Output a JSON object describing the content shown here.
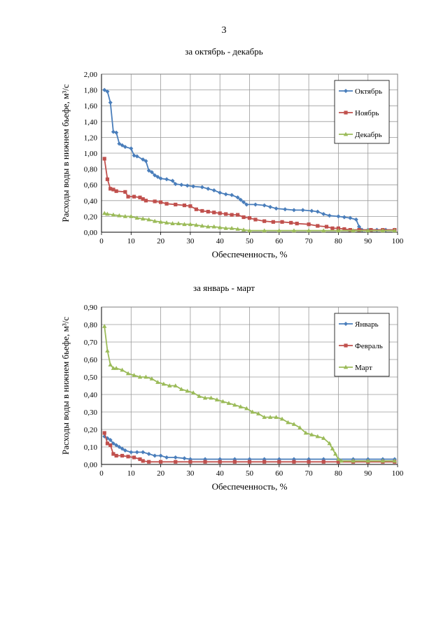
{
  "page": {
    "number": "3"
  },
  "chart_data": [
    {
      "type": "line",
      "title": "за октябрь - декабрь",
      "xlabel": "Обеспеченность, %",
      "ylabel": "Расходы воды в нижнем бьефе, м³/с",
      "xlim": [
        0,
        100
      ],
      "ylim": [
        0,
        2.0
      ],
      "x_ticks": [
        "0",
        "10",
        "20",
        "30",
        "40",
        "50",
        "60",
        "70",
        "80",
        "90",
        "100"
      ],
      "y_ticks": [
        "0,00",
        "0,20",
        "0,40",
        "0,60",
        "0,80",
        "1,00",
        "1,20",
        "1,40",
        "1,60",
        "1,80",
        "2,00"
      ],
      "grid": true,
      "legend_position": "top-right",
      "series": [
        {
          "name": "Октябрь",
          "color": "#4a7ebb",
          "marker": "diamond",
          "points": [
            [
              1,
              1.8
            ],
            [
              2,
              1.78
            ],
            [
              3,
              1.64
            ],
            [
              4,
              1.27
            ],
            [
              5,
              1.26
            ],
            [
              6,
              1.12
            ],
            [
              7,
              1.1
            ],
            [
              8,
              1.08
            ],
            [
              10,
              1.06
            ],
            [
              11,
              0.97
            ],
            [
              12,
              0.96
            ],
            [
              14,
              0.92
            ],
            [
              15,
              0.9
            ],
            [
              16,
              0.78
            ],
            [
              17,
              0.76
            ],
            [
              18,
              0.72
            ],
            [
              19,
              0.7
            ],
            [
              20,
              0.68
            ],
            [
              22,
              0.67
            ],
            [
              24,
              0.65
            ],
            [
              25,
              0.61
            ],
            [
              27,
              0.6
            ],
            [
              29,
              0.59
            ],
            [
              31,
              0.58
            ],
            [
              34,
              0.57
            ],
            [
              36,
              0.55
            ],
            [
              38,
              0.53
            ],
            [
              40,
              0.5
            ],
            [
              42,
              0.48
            ],
            [
              44,
              0.47
            ],
            [
              46,
              0.44
            ],
            [
              47,
              0.41
            ],
            [
              48,
              0.38
            ],
            [
              49,
              0.35
            ],
            [
              52,
              0.35
            ],
            [
              55,
              0.34
            ],
            [
              57,
              0.32
            ],
            [
              59,
              0.3
            ],
            [
              62,
              0.29
            ],
            [
              65,
              0.28
            ],
            [
              68,
              0.28
            ],
            [
              71,
              0.27
            ],
            [
              73,
              0.26
            ],
            [
              75,
              0.23
            ],
            [
              77,
              0.21
            ],
            [
              80,
              0.2
            ],
            [
              82,
              0.19
            ],
            [
              84,
              0.18
            ],
            [
              86,
              0.16
            ],
            [
              87,
              0.07
            ],
            [
              88,
              0.03
            ],
            [
              90,
              0.03
            ],
            [
              93,
              0.03
            ],
            [
              96,
              0.03
            ],
            [
              99,
              0.03
            ]
          ]
        },
        {
          "name": "Ноябрь",
          "color": "#c0504d",
          "marker": "square",
          "points": [
            [
              1,
              0.93
            ],
            [
              2,
              0.67
            ],
            [
              3,
              0.55
            ],
            [
              4,
              0.54
            ],
            [
              5,
              0.52
            ],
            [
              8,
              0.51
            ],
            [
              9,
              0.45
            ],
            [
              11,
              0.45
            ],
            [
              13,
              0.44
            ],
            [
              14,
              0.42
            ],
            [
              15,
              0.4
            ],
            [
              18,
              0.39
            ],
            [
              20,
              0.38
            ],
            [
              22,
              0.36
            ],
            [
              25,
              0.35
            ],
            [
              28,
              0.34
            ],
            [
              30,
              0.33
            ],
            [
              32,
              0.29
            ],
            [
              34,
              0.27
            ],
            [
              36,
              0.26
            ],
            [
              38,
              0.25
            ],
            [
              40,
              0.24
            ],
            [
              42,
              0.23
            ],
            [
              44,
              0.22
            ],
            [
              46,
              0.22
            ],
            [
              48,
              0.19
            ],
            [
              50,
              0.18
            ],
            [
              52,
              0.16
            ],
            [
              55,
              0.14
            ],
            [
              58,
              0.13
            ],
            [
              61,
              0.13
            ],
            [
              64,
              0.12
            ],
            [
              66,
              0.11
            ],
            [
              70,
              0.1
            ],
            [
              73,
              0.08
            ],
            [
              76,
              0.07
            ],
            [
              78,
              0.05
            ],
            [
              80,
              0.05
            ],
            [
              82,
              0.04
            ],
            [
              84,
              0.03
            ],
            [
              87,
              0.03
            ],
            [
              91,
              0.03
            ],
            [
              95,
              0.03
            ],
            [
              99,
              0.03
            ]
          ]
        },
        {
          "name": "Декабрь",
          "color": "#9bbb59",
          "marker": "triangle",
          "points": [
            [
              1,
              0.24
            ],
            [
              2,
              0.23
            ],
            [
              4,
              0.22
            ],
            [
              6,
              0.21
            ],
            [
              8,
              0.2
            ],
            [
              10,
              0.2
            ],
            [
              12,
              0.18
            ],
            [
              14,
              0.17
            ],
            [
              16,
              0.16
            ],
            [
              18,
              0.14
            ],
            [
              20,
              0.13
            ],
            [
              22,
              0.12
            ],
            [
              24,
              0.11
            ],
            [
              26,
              0.11
            ],
            [
              28,
              0.1
            ],
            [
              30,
              0.1
            ],
            [
              32,
              0.09
            ],
            [
              34,
              0.08
            ],
            [
              36,
              0.07
            ],
            [
              38,
              0.07
            ],
            [
              40,
              0.06
            ],
            [
              42,
              0.05
            ],
            [
              44,
              0.05
            ],
            [
              46,
              0.04
            ],
            [
              48,
              0.03
            ],
            [
              50,
              0.02
            ],
            [
              55,
              0.02
            ],
            [
              60,
              0.02
            ],
            [
              65,
              0.02
            ],
            [
              70,
              0.02
            ],
            [
              75,
              0.02
            ],
            [
              80,
              0.02
            ],
            [
              85,
              0.02
            ],
            [
              90,
              0.02
            ],
            [
              95,
              0.02
            ],
            [
              99,
              0.02
            ]
          ]
        }
      ]
    },
    {
      "type": "line",
      "title": "за январь - март",
      "xlabel": "Обеспеченность, %",
      "ylabel": "Расходы воды в нижнем бьефе, м³/с",
      "xlim": [
        0,
        100
      ],
      "ylim": [
        0,
        0.9
      ],
      "x_ticks": [
        "0",
        "10",
        "20",
        "30",
        "40",
        "50",
        "60",
        "70",
        "80",
        "90",
        "100"
      ],
      "y_ticks": [
        "0,00",
        "0,10",
        "0,20",
        "0,30",
        "0,40",
        "0,50",
        "0,60",
        "0,70",
        "0,80",
        "0,90"
      ],
      "grid": true,
      "legend_position": "top-right",
      "series": [
        {
          "name": "Январь",
          "color": "#4a7ebb",
          "marker": "diamond",
          "points": [
            [
              1,
              0.16
            ],
            [
              2,
              0.15
            ],
            [
              3,
              0.14
            ],
            [
              4,
              0.12
            ],
            [
              5,
              0.11
            ],
            [
              6,
              0.1
            ],
            [
              7,
              0.09
            ],
            [
              8,
              0.08
            ],
            [
              10,
              0.07
            ],
            [
              12,
              0.07
            ],
            [
              14,
              0.07
            ],
            [
              16,
              0.06
            ],
            [
              18,
              0.05
            ],
            [
              20,
              0.05
            ],
            [
              22,
              0.04
            ],
            [
              25,
              0.04
            ],
            [
              28,
              0.035
            ],
            [
              30,
              0.03
            ],
            [
              35,
              0.03
            ],
            [
              40,
              0.03
            ],
            [
              45,
              0.03
            ],
            [
              50,
              0.03
            ],
            [
              55,
              0.03
            ],
            [
              60,
              0.03
            ],
            [
              65,
              0.03
            ],
            [
              70,
              0.03
            ],
            [
              75,
              0.03
            ],
            [
              80,
              0.03
            ],
            [
              85,
              0.03
            ],
            [
              90,
              0.03
            ],
            [
              95,
              0.03
            ],
            [
              99,
              0.03
            ]
          ]
        },
        {
          "name": "Февраль",
          "color": "#c0504d",
          "marker": "square",
          "points": [
            [
              1,
              0.18
            ],
            [
              2,
              0.12
            ],
            [
              3,
              0.11
            ],
            [
              4,
              0.06
            ],
            [
              5,
              0.05
            ],
            [
              7,
              0.05
            ],
            [
              9,
              0.045
            ],
            [
              11,
              0.04
            ],
            [
              13,
              0.03
            ],
            [
              14,
              0.02
            ],
            [
              16,
              0.015
            ],
            [
              20,
              0.015
            ],
            [
              25,
              0.015
            ],
            [
              30,
              0.015
            ],
            [
              35,
              0.015
            ],
            [
              40,
              0.015
            ],
            [
              45,
              0.015
            ],
            [
              50,
              0.015
            ],
            [
              55,
              0.015
            ],
            [
              60,
              0.015
            ],
            [
              65,
              0.015
            ],
            [
              70,
              0.015
            ],
            [
              75,
              0.015
            ],
            [
              80,
              0.015
            ],
            [
              85,
              0.015
            ],
            [
              90,
              0.015
            ],
            [
              95,
              0.015
            ],
            [
              99,
              0.015
            ]
          ]
        },
        {
          "name": "Март",
          "color": "#9bbb59",
          "marker": "triangle",
          "points": [
            [
              1,
              0.79
            ],
            [
              2,
              0.65
            ],
            [
              3,
              0.57
            ],
            [
              4,
              0.55
            ],
            [
              5,
              0.55
            ],
            [
              7,
              0.54
            ],
            [
              9,
              0.52
            ],
            [
              11,
              0.51
            ],
            [
              13,
              0.5
            ],
            [
              15,
              0.5
            ],
            [
              17,
              0.49
            ],
            [
              19,
              0.47
            ],
            [
              21,
              0.46
            ],
            [
              23,
              0.45
            ],
            [
              25,
              0.45
            ],
            [
              27,
              0.43
            ],
            [
              29,
              0.42
            ],
            [
              31,
              0.41
            ],
            [
              33,
              0.39
            ],
            [
              35,
              0.38
            ],
            [
              37,
              0.38
            ],
            [
              39,
              0.37
            ],
            [
              41,
              0.36
            ],
            [
              43,
              0.35
            ],
            [
              45,
              0.34
            ],
            [
              47,
              0.33
            ],
            [
              49,
              0.32
            ],
            [
              51,
              0.3
            ],
            [
              53,
              0.29
            ],
            [
              55,
              0.27
            ],
            [
              57,
              0.27
            ],
            [
              59,
              0.27
            ],
            [
              61,
              0.26
            ],
            [
              63,
              0.24
            ],
            [
              65,
              0.23
            ],
            [
              67,
              0.21
            ],
            [
              69,
              0.18
            ],
            [
              71,
              0.17
            ],
            [
              73,
              0.16
            ],
            [
              75,
              0.15
            ],
            [
              77,
              0.12
            ],
            [
              78,
              0.09
            ],
            [
              79,
              0.06
            ],
            [
              80,
              0.03
            ],
            [
              81,
              0.02
            ],
            [
              85,
              0.02
            ],
            [
              90,
              0.02
            ],
            [
              95,
              0.02
            ],
            [
              99,
              0.02
            ]
          ]
        }
      ]
    }
  ]
}
